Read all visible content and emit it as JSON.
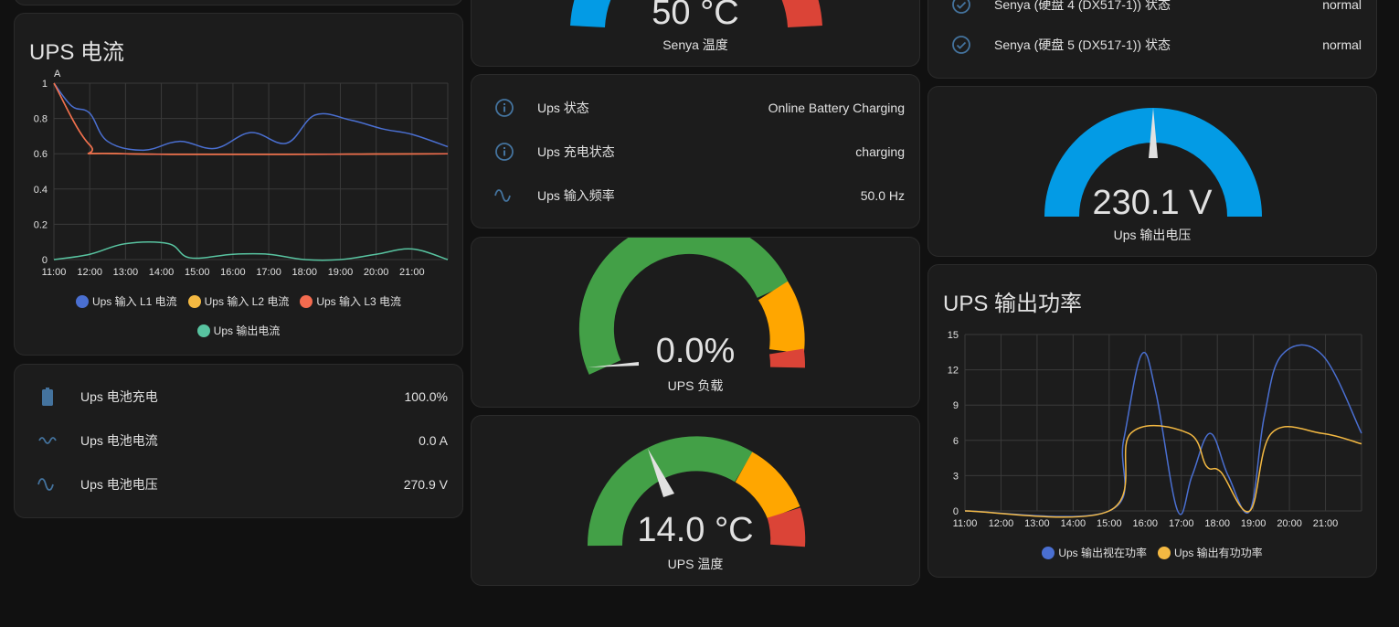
{
  "top_left_card": {},
  "current_card": {
    "title": "UPS 电流",
    "unit_label": "A",
    "legend": [
      "Ups 输入 L1 电流",
      "Ups 输入 L2 电流",
      "Ups 输入 L3 电流",
      "Ups 输出电流"
    ]
  },
  "battery_card": {
    "rows": [
      {
        "icon": "battery-icon",
        "name": "Ups 电池充电",
        "value": "100.0%"
      },
      {
        "icon": "current-dc-icon",
        "name": "Ups 电池电流",
        "value": "0.0 A"
      },
      {
        "icon": "sine-wave-icon",
        "name": "Ups 电池电压",
        "value": "270.9 V"
      }
    ]
  },
  "temp_gauge_top": {
    "value": "50 °C",
    "name": "Senya 温度"
  },
  "status_card": {
    "rows": [
      {
        "icon": "info-icon",
        "name": "Ups 状态",
        "value": "Online Battery Charging"
      },
      {
        "icon": "info-icon",
        "name": "Ups 充电状态",
        "value": "charging"
      },
      {
        "icon": "sine-wave-icon",
        "name": "Ups 输入频率",
        "value": "50.0 Hz"
      }
    ]
  },
  "load_gauge": {
    "value": "0.0%",
    "name": "UPS 负载",
    "fraction": 0.0
  },
  "temp_gauge": {
    "value": "14.0 °C",
    "name": "UPS 温度",
    "fraction": 0.28
  },
  "disk_card": {
    "rows": [
      {
        "icon": "check-circle-icon",
        "name": "Senya (硬盘 4 (DX517-1)) 状态",
        "value": "normal"
      },
      {
        "icon": "check-circle-icon",
        "name": "Senya (硬盘 5 (DX517-1)) 状态",
        "value": "normal"
      }
    ]
  },
  "voltage_gauge": {
    "value": "230.1 V",
    "name": "Ups 输出电压",
    "fraction": 0.5
  },
  "power_card": {
    "title": "UPS 输出功率",
    "legend": [
      "Ups 输出视在功率",
      "Ups 输出有功功率"
    ]
  },
  "colors": {
    "blue": "#4a6fd1",
    "yellow": "#f4b942",
    "red": "#f36b4f",
    "teal": "#58c3a0",
    "gauge_green": "#43a047",
    "gauge_orange": "#ffa600",
    "gauge_red": "#db4437",
    "gauge_blue": "#039be5"
  },
  "chart_data": [
    {
      "type": "line",
      "title": "UPS 电流",
      "ylabel": "A",
      "x": [
        "11:00",
        "12:00",
        "13:00",
        "14:00",
        "15:00",
        "16:00",
        "17:00",
        "18:00",
        "19:00",
        "20:00",
        "21:00"
      ],
      "ylim": [
        0,
        1
      ],
      "yticks": [
        "0",
        "0.2",
        "0.4",
        "0.6",
        "0.8",
        "1"
      ],
      "series": [
        {
          "name": "Ups 输入 L1 电流",
          "color": "#4a6fd1",
          "points": [
            [
              0,
              1
            ],
            [
              0.5,
              0.87
            ],
            [
              1,
              0.83
            ],
            [
              1.5,
              0.67
            ],
            [
              2.5,
              0.62
            ],
            [
              3.5,
              0.67
            ],
            [
              4.5,
              0.63
            ],
            [
              5.5,
              0.72
            ],
            [
              6.5,
              0.66
            ],
            [
              7.3,
              0.82
            ],
            [
              8.3,
              0.79
            ],
            [
              9.2,
              0.74
            ],
            [
              10,
              0.71
            ],
            [
              11,
              0.64
            ]
          ]
        },
        {
          "name": "Ups 输入 L2 电流",
          "color": "#f4b942",
          "points": [
            [
              0,
              1
            ],
            [
              1,
              0.65
            ],
            [
              2,
              0.6
            ],
            [
              11,
              0.6
            ]
          ]
        },
        {
          "name": "Ups 输入 L3 电流",
          "color": "#f36b4f",
          "points": [
            [
              0,
              1
            ],
            [
              1,
              0.65
            ],
            [
              2,
              0.6
            ],
            [
              11,
              0.6
            ]
          ]
        },
        {
          "name": "Ups 输出电流",
          "color": "#58c3a0",
          "points": [
            [
              0,
              0
            ],
            [
              1,
              0.03
            ],
            [
              2,
              0.09
            ],
            [
              3.2,
              0.09
            ],
            [
              3.8,
              0.01
            ],
            [
              5,
              0.03
            ],
            [
              6,
              0.03
            ],
            [
              7,
              0.0
            ],
            [
              8,
              0.0
            ],
            [
              9,
              0.03
            ],
            [
              10,
              0.06
            ],
            [
              11,
              0.0
            ]
          ]
        }
      ]
    },
    {
      "type": "line",
      "title": "UPS 输出功率",
      "x": [
        "11:00",
        "12:00",
        "13:00",
        "14:00",
        "15:00",
        "16:00",
        "17:00",
        "18:00",
        "19:00",
        "20:00",
        "21:00"
      ],
      "ylim": [
        0,
        15
      ],
      "yticks": [
        "0",
        "3",
        "6",
        "9",
        "12",
        "15"
      ],
      "series": [
        {
          "name": "Ups 输出视在功率",
          "color": "#4a6fd1",
          "points": [
            [
              0,
              0
            ],
            [
              4,
              0
            ],
            [
              4.4,
              6
            ],
            [
              4.9,
              13.3
            ],
            [
              5.3,
              10
            ],
            [
              5.9,
              0
            ],
            [
              6.3,
              3
            ],
            [
              6.8,
              6.6
            ],
            [
              7.3,
              3
            ],
            [
              7.9,
              0
            ],
            [
              8.3,
              8
            ],
            [
              8.8,
              13.3
            ],
            [
              9.9,
              13.3
            ],
            [
              11,
              6.6
            ]
          ]
        },
        {
          "name": "Ups 输出有功功率",
          "color": "#f4b942",
          "points": [
            [
              0,
              0
            ],
            [
              4,
              0
            ],
            [
              4.6,
              6.6
            ],
            [
              6.2,
              6.6
            ],
            [
              6.7,
              3.8
            ],
            [
              7.1,
              3.3
            ],
            [
              7.9,
              0
            ],
            [
              8.5,
              6.6
            ],
            [
              9.9,
              6.6
            ],
            [
              11,
              5.7
            ]
          ]
        }
      ]
    }
  ]
}
